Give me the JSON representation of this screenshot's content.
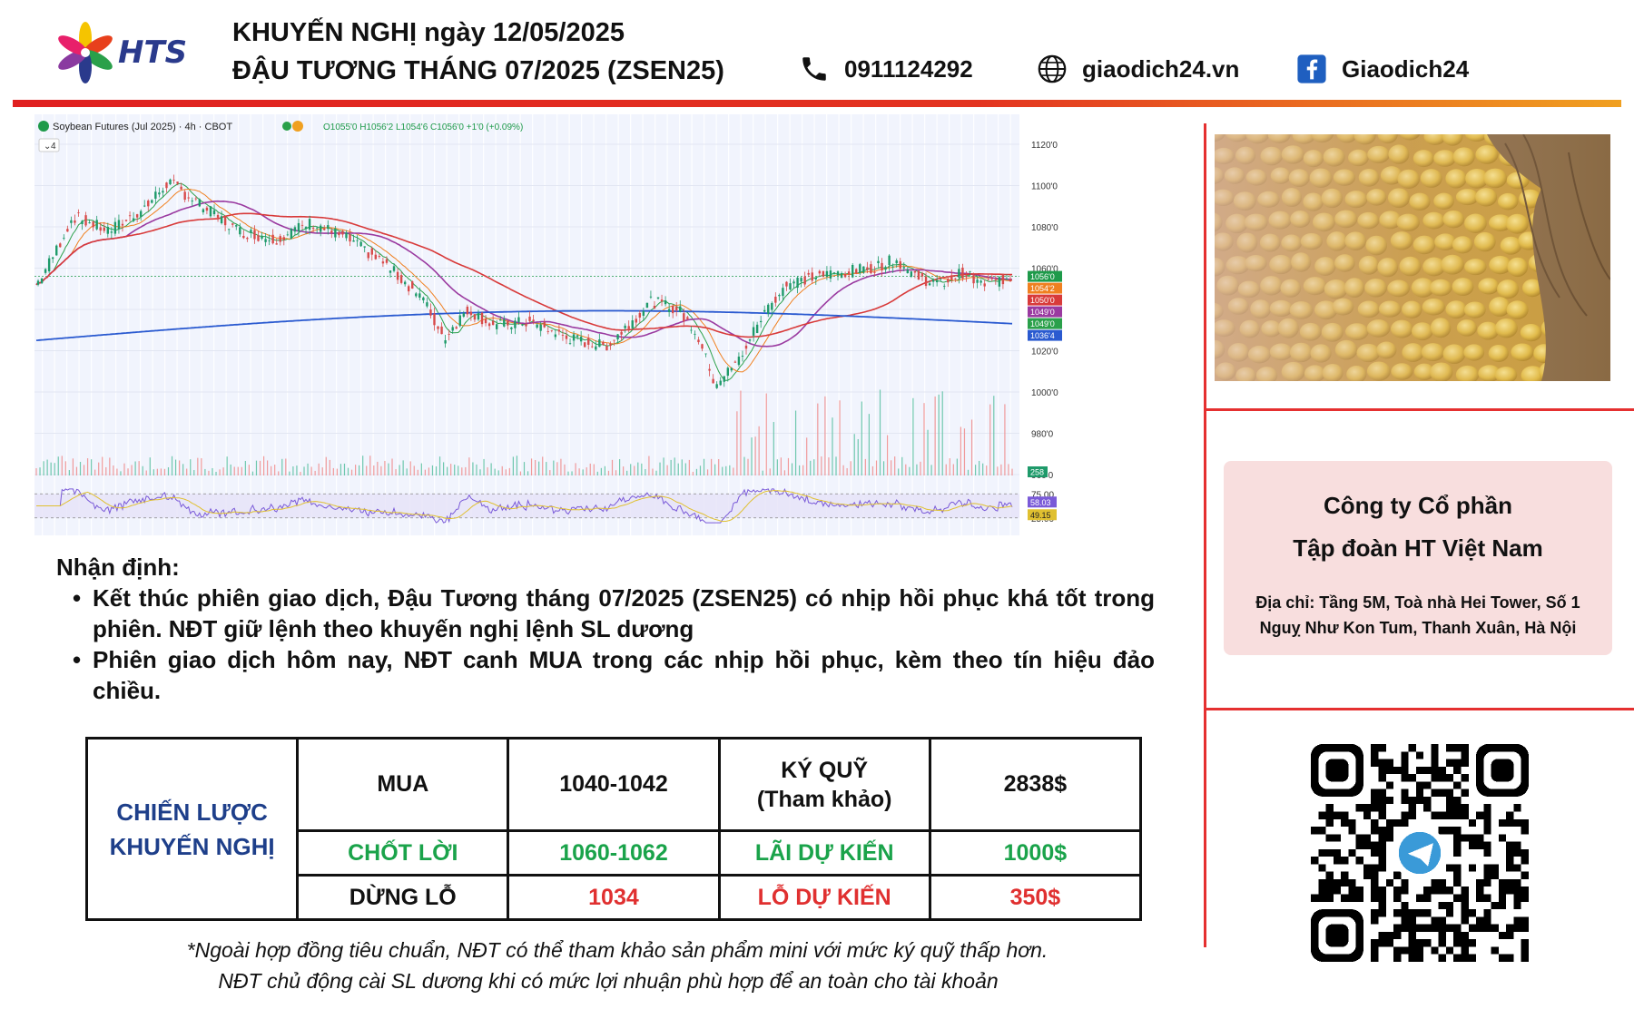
{
  "header": {
    "brand": "HTS",
    "title_line1": "KHUYẾN NGHỊ ngày 12/05/2025",
    "title_line2": "ĐẬU TƯƠNG THÁNG 07/2025 (ZSEN25)",
    "phone": "0911124292",
    "website": "giaodich24.vn",
    "facebook": "Giaodich24"
  },
  "chart": {
    "symbol_line": "Soybean Futures (Jul 2025) · 4h · CBOT",
    "ohlc_line": "O1055'0  H1056'2  L1054'6  C1056'0  +1'0 (+0.09%)",
    "indicator_count": "4",
    "price_ticks": [
      "1120'0",
      "1100'0",
      "1080'0",
      "1060'0",
      "1040'0",
      "1020'0",
      "1000'0",
      "980'0",
      "960'0"
    ],
    "price_badges": [
      {
        "text": "1056'0",
        "color": "#1e9a4a"
      },
      {
        "text": "1054'2",
        "color": "#f08020"
      },
      {
        "text": "1050'0",
        "color": "#d83a3a"
      },
      {
        "text": "1049'0",
        "color": "#9a3aa0"
      },
      {
        "text": "1049'0",
        "color": "#2aa04a"
      },
      {
        "text": "1036'4",
        "color": "#2a5ad0"
      }
    ],
    "volume_badge": "258",
    "rsi_ticks": [
      "75.00",
      "25.00"
    ],
    "rsi_badges": [
      {
        "text": "58.03",
        "color": "#7a5ad8"
      },
      {
        "text": "49.15",
        "color": "#e0c030"
      }
    ]
  },
  "analysis": {
    "title": "Nhận định:",
    "bullets": [
      "Kết thúc phiên giao dịch, Đậu Tương tháng 07/2025 (ZSEN25) có nhịp hồi phục khá tốt trong phiên. NĐT giữ lệnh theo khuyến nghị lệnh SL dương",
      "Phiên giao dịch hôm nay, NĐT canh MUA trong các nhịp hồi phục, kèm theo tín hiệu đảo chiều."
    ]
  },
  "strategy": {
    "head_line1": "CHIẾN LƯỢC",
    "head_line2": "KHUYẾN NGHỊ",
    "rows": [
      [
        "MUA",
        "1040-1042",
        "KÝ QUỸ\n(Tham khảo)",
        "2838$"
      ],
      [
        "CHỐT LỜI",
        "1060-1062",
        "LÃI DỰ KIẾN",
        "1000$"
      ],
      [
        "DỪNG LỖ",
        "1034",
        "LỖ DỰ KIẾN",
        "350$"
      ]
    ]
  },
  "notes": {
    "line1": "*Ngoài hợp đồng tiêu chuẩn, NĐT có thể tham khảo sản phẩm mini với mức ký quỹ thấp hơn.",
    "line2": "NĐT chủ động cài SL dương khi có mức lợi nhuận phù hợp để an toàn cho tài khoản"
  },
  "company": {
    "name_line1": "Công ty Cổ phần",
    "name_line2": "Tập đoàn HT Việt Nam",
    "address": "Địa chỉ: Tầng 5M, Toà nhà Hei Tower, Số 1 Nguỵ Như Kon Tum, Thanh Xuân, Hà Nội"
  },
  "icons": {
    "phone": "phone-icon",
    "website": "globe-icon",
    "facebook": "facebook-icon",
    "qr": "telegram-qr-code"
  }
}
